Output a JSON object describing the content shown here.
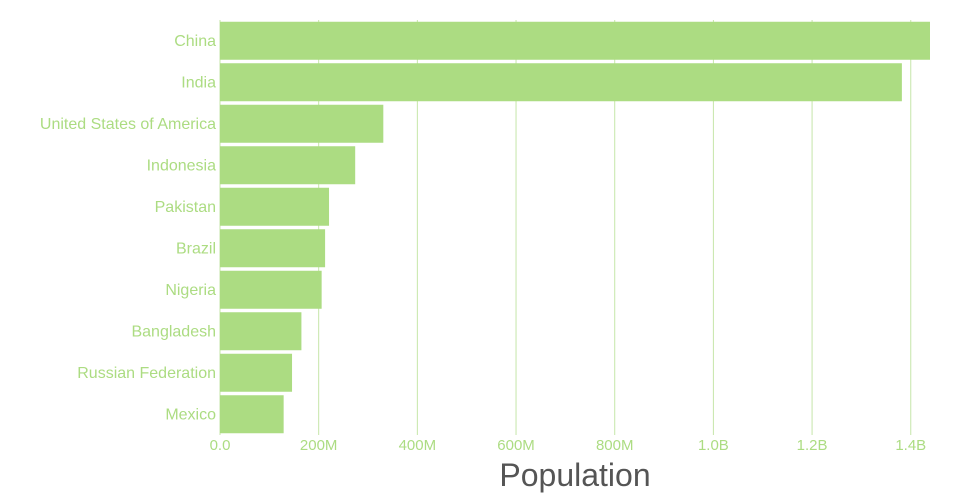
{
  "chart_data": {
    "type": "bar",
    "orientation": "horizontal",
    "title": "",
    "xlabel": "Population",
    "ylabel": "",
    "categories": [
      "China",
      "India",
      "United States of America",
      "Indonesia",
      "Pakistan",
      "Brazil",
      "Nigeria",
      "Bangladesh",
      "Russian Federation",
      "Mexico"
    ],
    "values": [
      1439000000,
      1382000000,
      331000000,
      274000000,
      221000000,
      213000000,
      206000000,
      165000000,
      146000000,
      129000000
    ],
    "xlim": [
      0,
      1439000000
    ],
    "x_ticks": [
      0,
      200000000,
      400000000,
      600000000,
      800000000,
      1000000000,
      1200000000,
      1400000000
    ],
    "x_tick_labels": [
      "0.0",
      "200M",
      "400M",
      "600M",
      "800M",
      "1.0B",
      "1.2B",
      "1.4B"
    ],
    "grid": true,
    "legend": "none",
    "colors": {
      "bar": "#acdc82",
      "grid": "#c6e6a9",
      "label": "#acdc82",
      "axis_title": "#555555"
    }
  }
}
